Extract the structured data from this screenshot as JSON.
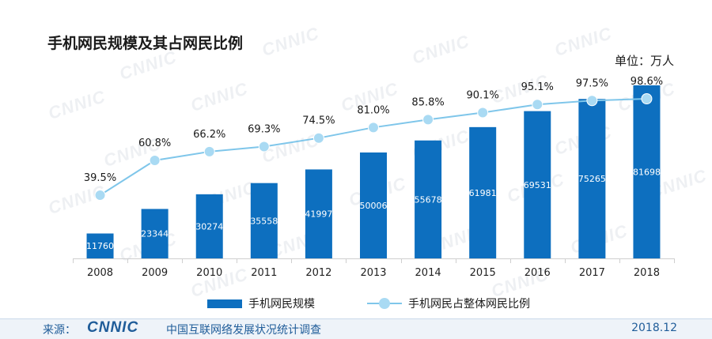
{
  "watermark": "CNNIC",
  "unit": "单位：万人",
  "legend": {
    "bar_label": "手机网民规模",
    "line_label": "手机网民占整体网民比例"
  },
  "footer": {
    "source_label": "来源：",
    "logo_text": "CNNIC",
    "report": "中国互联网络发展状况统计调查",
    "date": "2018.12"
  },
  "colors": {
    "bar": "#0d6fbf",
    "line": "#7fc6ea",
    "marker": "#a9daf3",
    "axis": "#cfcfcf"
  },
  "chart_data": {
    "type": "bar",
    "title": "手机网民规模及其占网民比例",
    "categories": [
      "2008",
      "2009",
      "2010",
      "2011",
      "2012",
      "2013",
      "2014",
      "2015",
      "2016",
      "2017",
      "2018"
    ],
    "series": [
      {
        "name": "手机网民规模",
        "type": "bar",
        "values": [
          11760,
          23344,
          30274,
          35558,
          41997,
          50006,
          55678,
          61981,
          69531,
          75265,
          81698
        ]
      },
      {
        "name": "手机网民占整体网民比例",
        "type": "line",
        "values": [
          39.5,
          60.8,
          66.2,
          69.3,
          74.5,
          81.0,
          85.8,
          90.1,
          95.1,
          97.5,
          98.6
        ],
        "labels": [
          "39.5%",
          "60.8%",
          "66.2%",
          "69.3%",
          "74.5%",
          "81.0%",
          "85.8%",
          "90.1%",
          "95.1%",
          "97.5%",
          "98.6%"
        ]
      }
    ],
    "ylim_bar": [
      0,
      86000
    ],
    "ylim_line": [
      0,
      100
    ],
    "grid": false,
    "legend_position": "bottom"
  }
}
